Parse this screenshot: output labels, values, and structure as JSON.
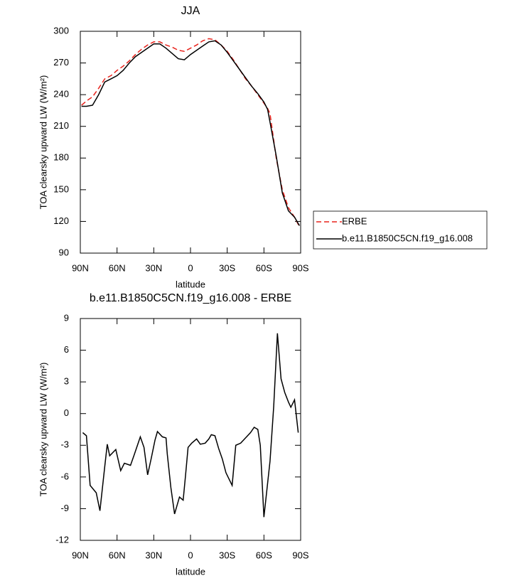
{
  "chart_data": [
    {
      "type": "line",
      "title": "JJA",
      "xlabel": "latitude",
      "ylabel": "TOA clearsky upward LW (W/m²)",
      "x": [
        89,
        85,
        80,
        75,
        70,
        65,
        60,
        55,
        50,
        45,
        40,
        35,
        30,
        25,
        20,
        15,
        10,
        5,
        0,
        -5,
        -10,
        -15,
        -20,
        -25,
        -30,
        -35,
        -40,
        -45,
        -50,
        -55,
        -60,
        -63,
        -65,
        -70,
        -75,
        -80,
        -85,
        -89
      ],
      "series": [
        {
          "name": "ERBE",
          "color": "#e8231c",
          "dash": true,
          "values": [
            230,
            234,
            238,
            246,
            255,
            258,
            263,
            267,
            272,
            278,
            283,
            287,
            290,
            290,
            287,
            285,
            282,
            281,
            284,
            287,
            291,
            293,
            292,
            287,
            281,
            273,
            264,
            255,
            248,
            240,
            232,
            227,
            222,
            180,
            150,
            133,
            124,
            115
          ]
        },
        {
          "name": "b.e11.B1850C5CN.f19_g16.008",
          "color": "#000000",
          "dash": false,
          "values": [
            229,
            229,
            230,
            240,
            252,
            255,
            258,
            263,
            270,
            276,
            280,
            284,
            288,
            288,
            284,
            279,
            274,
            273,
            278,
            282,
            286,
            290,
            291,
            287,
            280,
            272,
            264,
            256,
            248,
            241,
            233,
            226,
            214,
            182,
            147,
            130,
            124,
            116
          ]
        }
      ],
      "xlim": [
        90,
        -90
      ],
      "xticks": [
        {
          "value": 90,
          "label": "90N"
        },
        {
          "value": 60,
          "label": "60N"
        },
        {
          "value": 30,
          "label": "30N"
        },
        0,
        {
          "value": -30,
          "label": "30S"
        },
        {
          "value": -60,
          "label": "60S"
        },
        {
          "value": -90,
          "label": "90S"
        }
      ],
      "ylim": [
        90,
        300
      ],
      "yticks": [
        90,
        120,
        150,
        180,
        210,
        240,
        270,
        300
      ],
      "legend": "right"
    },
    {
      "type": "line",
      "title": "b.e11.B1850C5CN.f19_g16.008 - ERBE",
      "xlabel": "latitude",
      "ylabel": "TOA clearsky upward LW (W/m²)",
      "x": [
        88,
        85,
        82,
        77,
        74,
        70,
        68,
        66,
        61,
        57,
        54,
        49,
        46,
        43,
        41,
        38,
        35,
        32,
        29,
        27,
        23,
        20,
        19,
        16,
        13,
        9,
        6,
        4,
        2,
        -1,
        -5,
        -8,
        -12,
        -15,
        -17,
        -20,
        -23,
        -26,
        -29,
        -34,
        -37,
        -41,
        -45,
        -49,
        -52,
        -55,
        -57,
        -60,
        -65,
        -68,
        -71,
        -74,
        -77,
        -80,
        -82,
        -85,
        -88
      ],
      "series": [
        {
          "color": "#000000",
          "dash": false,
          "values": [
            -1.8,
            -2.1,
            -6.8,
            -7.5,
            -9.2,
            -5.0,
            -2.9,
            -4.0,
            -3.4,
            -5.4,
            -4.7,
            -4.9,
            -3.9,
            -2.9,
            -2.2,
            -3.2,
            -5.8,
            -4.2,
            -2.5,
            -1.7,
            -2.2,
            -2.3,
            -3.8,
            -7.0,
            -9.5,
            -7.9,
            -8.2,
            -5.8,
            -3.2,
            -2.8,
            -2.4,
            -2.9,
            -2.8,
            -2.4,
            -2.0,
            -2.1,
            -3.3,
            -4.3,
            -5.6,
            -6.8,
            -3.0,
            -2.8,
            -2.3,
            -1.8,
            -1.3,
            -1.5,
            -3.0,
            -9.8,
            -4.5,
            0.7,
            7.6,
            3.3,
            2.0,
            1.1,
            0.6,
            1.3,
            -1.8
          ]
        }
      ],
      "xlim": [
        90,
        -90
      ],
      "xticks": [
        {
          "value": 90,
          "label": "90N"
        },
        {
          "value": 60,
          "label": "60N"
        },
        {
          "value": 30,
          "label": "30N"
        },
        0,
        {
          "value": -30,
          "label": "30S"
        },
        {
          "value": -60,
          "label": "60S"
        },
        {
          "value": -90,
          "label": "90S"
        }
      ],
      "ylim": [
        -12,
        9
      ],
      "yticks": [
        -12,
        -9,
        -6,
        -3,
        0,
        3,
        6,
        9
      ]
    }
  ]
}
